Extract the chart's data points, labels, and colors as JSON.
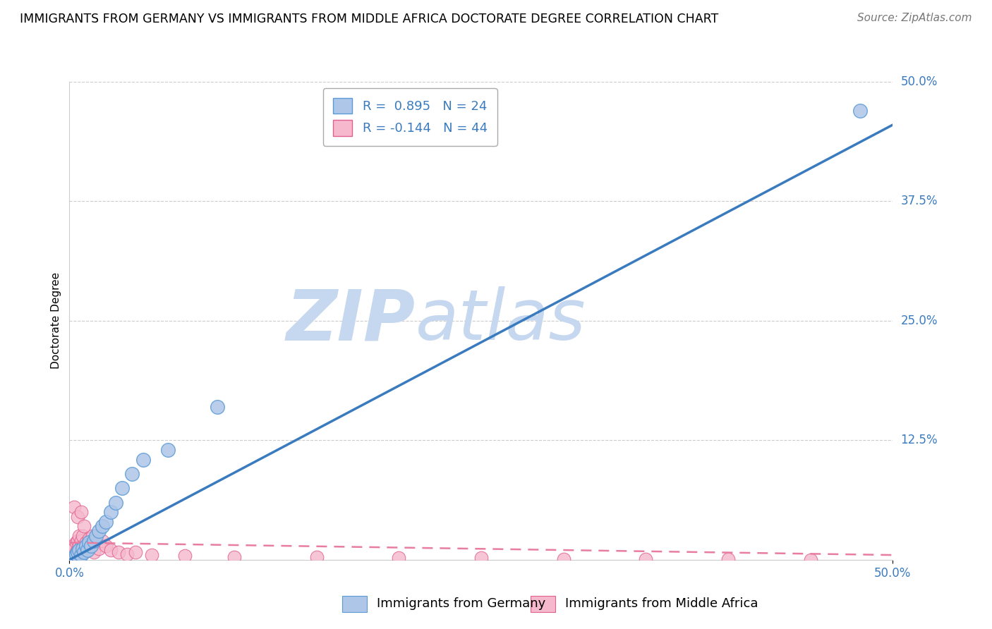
{
  "title": "IMMIGRANTS FROM GERMANY VS IMMIGRANTS FROM MIDDLE AFRICA DOCTORATE DEGREE CORRELATION CHART",
  "source": "Source: ZipAtlas.com",
  "ylabel": "Doctorate Degree",
  "blue_R": 0.895,
  "blue_N": 24,
  "pink_R": -0.144,
  "pink_N": 44,
  "blue_label": "Immigrants from Germany",
  "pink_label": "Immigrants from Middle Africa",
  "blue_color": "#aec6e8",
  "pink_color": "#f5b8cc",
  "blue_line_color": "#3a7bbf",
  "pink_line_color": "#e87da0",
  "blue_edge_color": "#5b9bd5",
  "pink_edge_color": "#e06090",
  "xlim": [
    0.0,
    0.5
  ],
  "ylim": [
    0.0,
    0.5
  ],
  "xtick_positions": [
    0.0,
    0.5
  ],
  "xtick_labels": [
    "0.0%",
    "50.0%"
  ],
  "ytick_positions": [
    0.0,
    0.125,
    0.25,
    0.375,
    0.5
  ],
  "ytick_labels": [
    "",
    "12.5%",
    "25.0%",
    "37.5%",
    "50.0%"
  ],
  "grid_color": "#cccccc",
  "background_color": "#ffffff",
  "watermark_zip": "ZIP",
  "watermark_atlas": "atlas",
  "watermark_color": "#c5d8ef",
  "title_fontsize": 12.5,
  "source_fontsize": 11,
  "axis_label_fontsize": 11,
  "tick_fontsize": 12,
  "legend_fontsize": 13,
  "blue_points_x": [
    0.002,
    0.004,
    0.005,
    0.006,
    0.007,
    0.008,
    0.009,
    0.01,
    0.011,
    0.012,
    0.013,
    0.015,
    0.016,
    0.018,
    0.02,
    0.022,
    0.025,
    0.028,
    0.032,
    0.038,
    0.045,
    0.06,
    0.09,
    0.48
  ],
  "blue_points_y": [
    0.002,
    0.006,
    0.008,
    0.01,
    0.005,
    0.012,
    0.008,
    0.015,
    0.01,
    0.018,
    0.015,
    0.02,
    0.025,
    0.03,
    0.035,
    0.04,
    0.05,
    0.06,
    0.075,
    0.09,
    0.105,
    0.115,
    0.16,
    0.47
  ],
  "pink_points_x": [
    0.001,
    0.002,
    0.002,
    0.003,
    0.003,
    0.004,
    0.004,
    0.005,
    0.005,
    0.006,
    0.006,
    0.007,
    0.007,
    0.008,
    0.008,
    0.009,
    0.01,
    0.011,
    0.012,
    0.013,
    0.014,
    0.015,
    0.016,
    0.018,
    0.02,
    0.022,
    0.025,
    0.03,
    0.035,
    0.04,
    0.05,
    0.07,
    0.1,
    0.15,
    0.2,
    0.25,
    0.3,
    0.35,
    0.4,
    0.45,
    0.003,
    0.005,
    0.007,
    0.009
  ],
  "pink_points_y": [
    0.008,
    0.01,
    0.015,
    0.005,
    0.012,
    0.018,
    0.008,
    0.02,
    0.01,
    0.015,
    0.025,
    0.008,
    0.02,
    0.015,
    0.025,
    0.01,
    0.018,
    0.012,
    0.022,
    0.015,
    0.025,
    0.008,
    0.018,
    0.012,
    0.02,
    0.015,
    0.01,
    0.008,
    0.006,
    0.008,
    0.005,
    0.004,
    0.003,
    0.003,
    0.002,
    0.002,
    0.001,
    0.001,
    0.001,
    0.0,
    0.055,
    0.045,
    0.05,
    0.035
  ]
}
